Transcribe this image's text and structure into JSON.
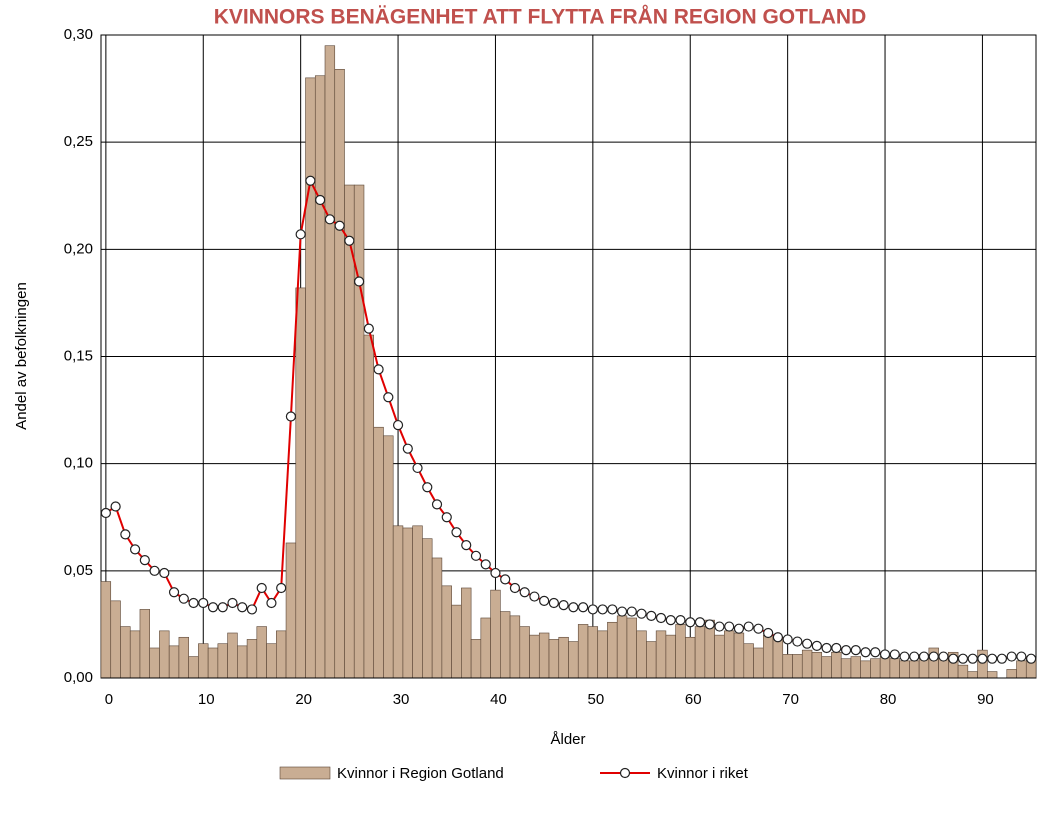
{
  "chart_data": {
    "type": "combo",
    "title": "KVINNORS BENÄGENHET ATT FLYTTA FRÅN REGION GOTLAND",
    "x_label": "Ålder",
    "y_label": "Andel av befolkningen",
    "x": [
      0,
      1,
      2,
      3,
      4,
      5,
      6,
      7,
      8,
      9,
      10,
      11,
      12,
      13,
      14,
      15,
      16,
      17,
      18,
      19,
      20,
      21,
      22,
      23,
      24,
      25,
      26,
      27,
      28,
      29,
      30,
      31,
      32,
      33,
      34,
      35,
      36,
      37,
      38,
      39,
      40,
      41,
      42,
      43,
      44,
      45,
      46,
      47,
      48,
      49,
      50,
      51,
      52,
      53,
      54,
      55,
      56,
      57,
      58,
      59,
      60,
      61,
      62,
      63,
      64,
      65,
      66,
      67,
      68,
      69,
      70,
      71,
      72,
      73,
      74,
      75,
      76,
      77,
      78,
      79,
      80,
      81,
      82,
      83,
      84,
      85,
      86,
      87,
      88,
      89,
      90,
      91,
      92,
      93,
      94,
      95
    ],
    "series": [
      {
        "name": "Kvinnor i Region Gotland",
        "type": "bar",
        "color": "#c9ad93",
        "values": [
          0.045,
          0.036,
          0.024,
          0.022,
          0.032,
          0.014,
          0.022,
          0.015,
          0.019,
          0.01,
          0.016,
          0.014,
          0.016,
          0.021,
          0.015,
          0.018,
          0.024,
          0.016,
          0.022,
          0.063,
          0.182,
          0.28,
          0.281,
          0.295,
          0.284,
          0.23,
          0.23,
          0.16,
          0.117,
          0.113,
          0.071,
          0.07,
          0.071,
          0.065,
          0.056,
          0.043,
          0.034,
          0.042,
          0.018,
          0.028,
          0.041,
          0.031,
          0.029,
          0.024,
          0.02,
          0.021,
          0.018,
          0.019,
          0.017,
          0.025,
          0.024,
          0.022,
          0.026,
          0.029,
          0.028,
          0.022,
          0.017,
          0.022,
          0.02,
          0.025,
          0.019,
          0.024,
          0.027,
          0.02,
          0.022,
          0.021,
          0.016,
          0.014,
          0.02,
          0.019,
          0.011,
          0.011,
          0.013,
          0.012,
          0.01,
          0.012,
          0.009,
          0.01,
          0.008,
          0.009,
          0.01,
          0.009,
          0.008,
          0.008,
          0.011,
          0.014,
          0.01,
          0.012,
          0.006,
          0.003,
          0.013,
          0.003,
          0.0,
          0.004,
          0.008,
          0.009
        ]
      },
      {
        "name": "Kvinnor i riket",
        "type": "line",
        "color": "#e00000",
        "values": [
          0.077,
          0.08,
          0.067,
          0.06,
          0.055,
          0.05,
          0.049,
          0.04,
          0.037,
          0.035,
          0.035,
          0.033,
          0.033,
          0.035,
          0.033,
          0.032,
          0.042,
          0.035,
          0.042,
          0.122,
          0.207,
          0.232,
          0.223,
          0.214,
          0.211,
          0.204,
          0.185,
          0.163,
          0.144,
          0.131,
          0.118,
          0.107,
          0.098,
          0.089,
          0.081,
          0.075,
          0.068,
          0.062,
          0.057,
          0.053,
          0.049,
          0.046,
          0.042,
          0.04,
          0.038,
          0.036,
          0.035,
          0.034,
          0.033,
          0.033,
          0.032,
          0.032,
          0.032,
          0.031,
          0.031,
          0.03,
          0.029,
          0.028,
          0.027,
          0.027,
          0.026,
          0.026,
          0.025,
          0.024,
          0.024,
          0.023,
          0.024,
          0.023,
          0.021,
          0.019,
          0.018,
          0.017,
          0.016,
          0.015,
          0.014,
          0.014,
          0.013,
          0.013,
          0.012,
          0.012,
          0.011,
          0.011,
          0.01,
          0.01,
          0.01,
          0.01,
          0.01,
          0.009,
          0.009,
          0.009,
          0.009,
          0.009,
          0.009,
          0.01,
          0.01,
          0.009
        ]
      }
    ],
    "xlim": [
      -0.5,
      95.5
    ],
    "xticks": [
      0,
      10,
      20,
      30,
      40,
      50,
      60,
      70,
      80,
      90
    ],
    "ylim": [
      0,
      0.3
    ],
    "yticks": [
      {
        "value": 0,
        "label": "0,00"
      },
      {
        "value": 0.05,
        "label": "0,05"
      },
      {
        "value": 0.1,
        "label": "0,10"
      },
      {
        "value": 0.15,
        "label": "0,15"
      },
      {
        "value": 0.2,
        "label": "0,20"
      },
      {
        "value": 0.25,
        "label": "0,25"
      },
      {
        "value": 0.3,
        "label": "0,30"
      }
    ],
    "grid": true,
    "legend": "bottom"
  }
}
